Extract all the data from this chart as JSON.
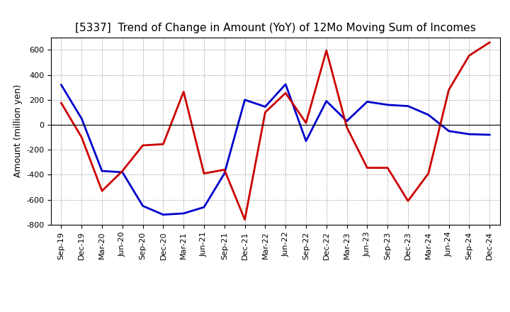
{
  "title": "[5337]  Trend of Change in Amount (YoY) of 12Mo Moving Sum of Incomes",
  "ylabel": "Amount (million yen)",
  "x_labels": [
    "Sep-19",
    "Dec-19",
    "Mar-20",
    "Jun-20",
    "Sep-20",
    "Dec-20",
    "Mar-21",
    "Jun-21",
    "Sep-21",
    "Dec-21",
    "Mar-22",
    "Jun-22",
    "Sep-22",
    "Dec-22",
    "Mar-23",
    "Jun-23",
    "Sep-23",
    "Dec-23",
    "Mar-24",
    "Jun-24",
    "Sep-24",
    "Dec-24"
  ],
  "ordinary_income": [
    320,
    50,
    -370,
    -380,
    -650,
    -720,
    -710,
    -660,
    -390,
    200,
    145,
    325,
    -130,
    190,
    30,
    185,
    160,
    150,
    80,
    -50,
    -75,
    -80
  ],
  "net_income": [
    175,
    -100,
    -530,
    -370,
    -165,
    -155,
    265,
    -390,
    -360,
    -760,
    100,
    255,
    15,
    595,
    -20,
    -345,
    -345,
    -610,
    -390,
    280,
    555,
    660
  ],
  "ylim": [
    -800,
    700
  ],
  "yticks": [
    -800,
    -600,
    -400,
    -200,
    0,
    200,
    400,
    600
  ],
  "ordinary_color": "#0000cc",
  "net_color": "#cc0000",
  "background_color": "#ffffff",
  "grid_color": "#888888",
  "title_fontsize": 11,
  "axis_fontsize": 9,
  "legend_fontsize": 10,
  "tick_fontsize": 8,
  "linewidth": 2.0
}
